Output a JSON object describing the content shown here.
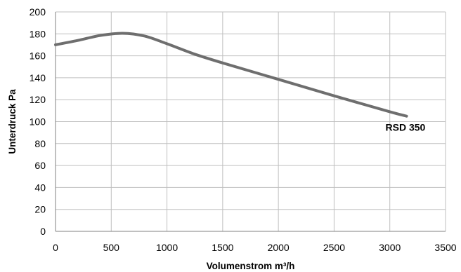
{
  "chart_data": {
    "type": "line",
    "title": "",
    "xlabel": "Volumenstrom  m³/h",
    "ylabel": "Unterdruck Pa",
    "xlim": [
      0,
      3500
    ],
    "ylim": [
      0,
      200
    ],
    "x_ticks": [
      0,
      500,
      1000,
      1500,
      2000,
      2500,
      3000,
      3500
    ],
    "y_ticks": [
      0,
      20,
      40,
      60,
      80,
      100,
      120,
      140,
      160,
      180,
      200
    ],
    "grid": true,
    "legend": "none",
    "series": [
      {
        "name": "RSD 350",
        "color": "#6e6e6e",
        "x": [
          0,
          200,
          400,
          600,
          800,
          1000,
          1250,
          1500,
          2000,
          2500,
          3000,
          3150
        ],
        "y": [
          170,
          174,
          178.5,
          180.5,
          178,
          171,
          161.5,
          153.5,
          138.5,
          123.5,
          109,
          105
        ]
      }
    ]
  }
}
